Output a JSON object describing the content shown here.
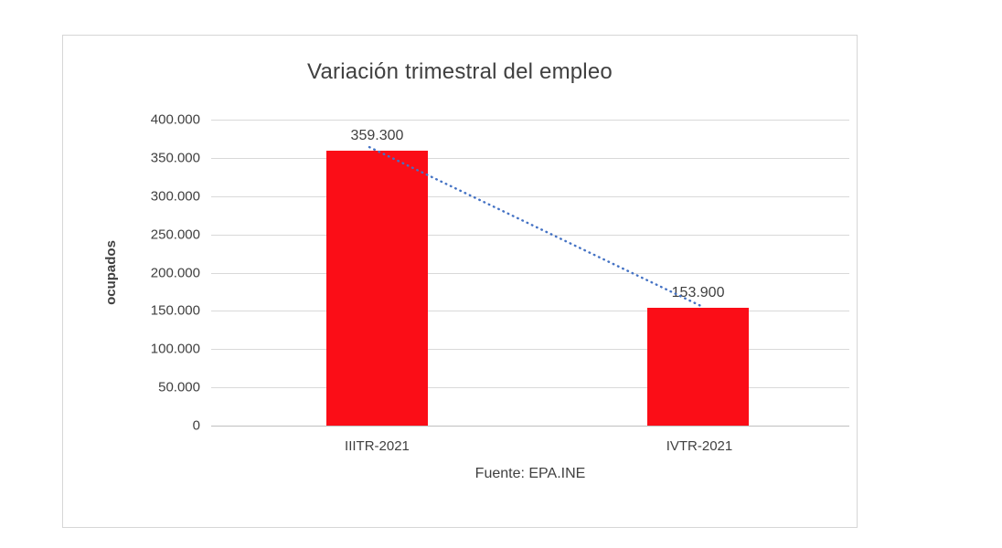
{
  "chart_data": {
    "type": "bar",
    "title": "Variación trimestral del empleo",
    "categories": [
      "IIITR-2021",
      "IVTR-2021"
    ],
    "values": [
      359300,
      153900
    ],
    "value_labels": [
      "359.300",
      "153.900"
    ],
    "ylabel": "ocupados",
    "xlabel": "",
    "source": "Fuente: EPA.INE",
    "ylim": [
      0,
      400000
    ],
    "ytick_interval": 50000,
    "ytick_labels": [
      "400.000",
      "350.000",
      "300.000",
      "250.000",
      "200.000",
      "150.000",
      "100.000",
      "50.000",
      "0"
    ],
    "grid": true,
    "legend": "none",
    "bar_color": "#fb0d17",
    "grid_color": "#d9d9d9",
    "trendline": {
      "style": "dotted",
      "color": "#4472c4"
    }
  }
}
